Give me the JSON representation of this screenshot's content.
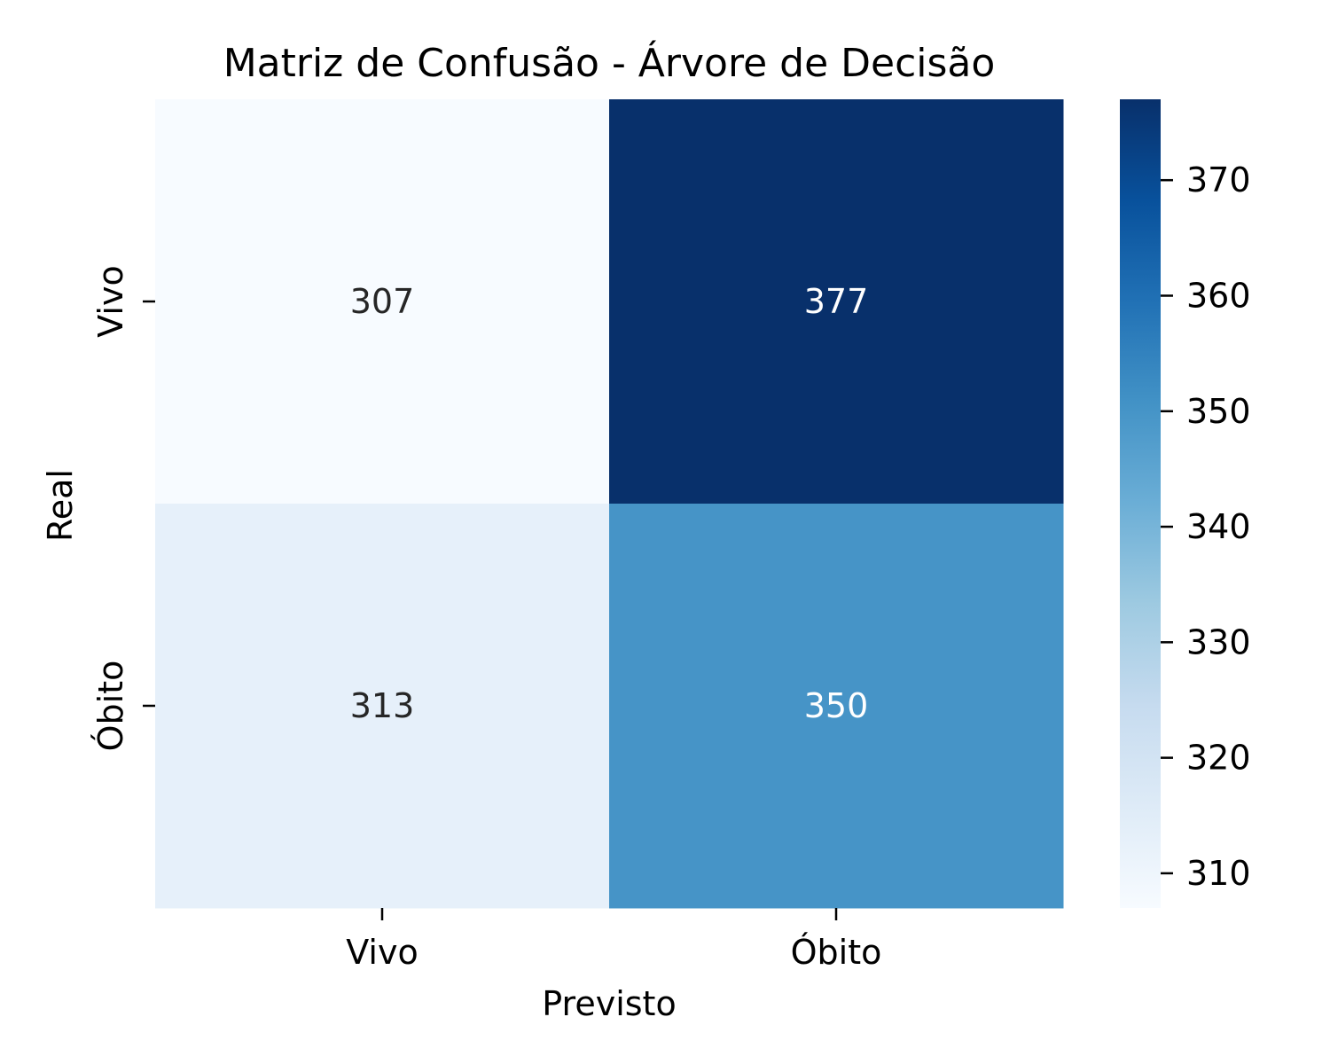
{
  "chart_data": {
    "type": "heatmap",
    "title": "Matriz de Confusão - Árvore de Decisão",
    "xlabel": "Previsto",
    "ylabel": "Real",
    "x_categories": [
      "Vivo",
      "Óbito"
    ],
    "y_categories": [
      "Vivo",
      "Óbito"
    ],
    "values": [
      [
        307,
        377
      ],
      [
        313,
        350
      ]
    ],
    "colormap": "Blues",
    "colorbar": {
      "vmin": 307,
      "vmax": 377,
      "ticks": [
        310,
        320,
        330,
        340,
        350,
        360,
        370
      ]
    }
  }
}
